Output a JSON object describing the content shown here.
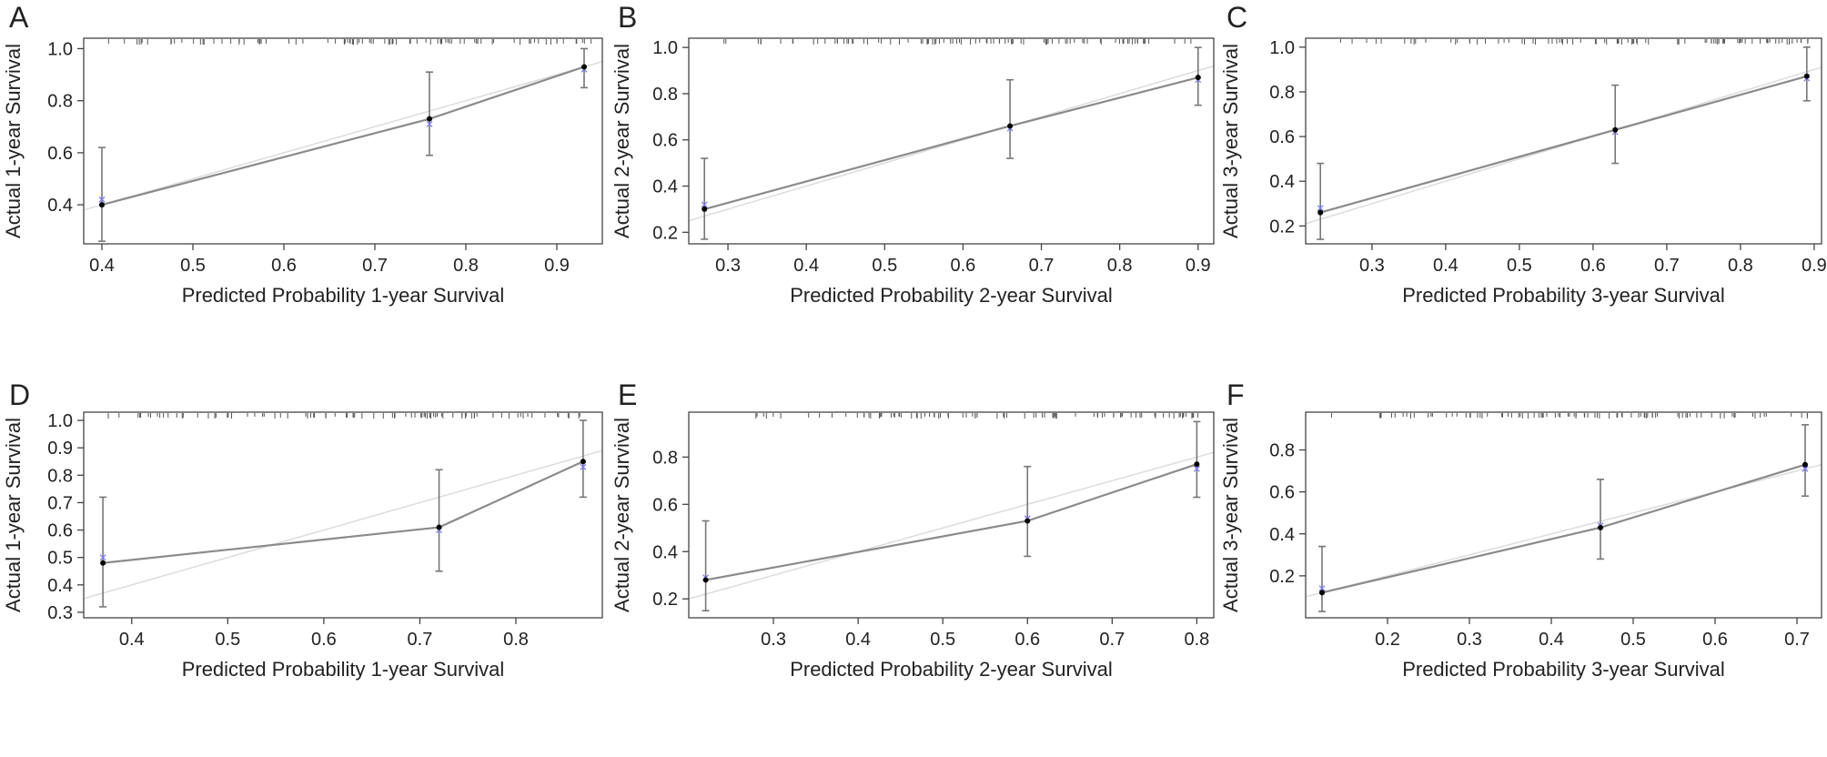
{
  "chart_data": [
    {
      "type": "line",
      "panel_label": "A",
      "xlabel": "Predicted Probability 1-year Survival",
      "ylabel": "Actual 1-year Survival",
      "xlim": [
        0.38,
        0.95
      ],
      "ylim": [
        0.25,
        1.04
      ],
      "xticks": [
        0.4,
        0.5,
        0.6,
        0.7,
        0.8,
        0.9
      ],
      "yticks": [
        0.4,
        0.6,
        0.8,
        1.0
      ],
      "points": [
        {
          "x": 0.4,
          "y": 0.4,
          "lower": 0.26,
          "upper": 0.62,
          "corrected": 0.42
        },
        {
          "x": 0.76,
          "y": 0.73,
          "lower": 0.59,
          "upper": 0.91,
          "corrected": 0.71
        },
        {
          "x": 0.93,
          "y": 0.93,
          "lower": 0.85,
          "upper": 1.0,
          "corrected": 0.92
        }
      ],
      "reference_line": true
    },
    {
      "type": "line",
      "panel_label": "B",
      "xlabel": "Predicted Probability 2-year Survival",
      "ylabel": "Actual 2-year Survival",
      "xlim": [
        0.25,
        0.92
      ],
      "ylim": [
        0.15,
        1.04
      ],
      "xticks": [
        0.3,
        0.4,
        0.5,
        0.6,
        0.7,
        0.8,
        0.9
      ],
      "yticks": [
        0.2,
        0.4,
        0.6,
        0.8,
        1.0
      ],
      "points": [
        {
          "x": 0.27,
          "y": 0.3,
          "lower": 0.17,
          "upper": 0.52,
          "corrected": 0.32
        },
        {
          "x": 0.66,
          "y": 0.66,
          "lower": 0.52,
          "upper": 0.86,
          "corrected": 0.65
        },
        {
          "x": 0.9,
          "y": 0.87,
          "lower": 0.75,
          "upper": 1.0,
          "corrected": 0.86
        }
      ],
      "reference_line": true
    },
    {
      "type": "line",
      "panel_label": "C",
      "xlabel": "Predicted Probability 3-year Survival",
      "ylabel": "Actual 3-year Survival",
      "xlim": [
        0.21,
        0.91
      ],
      "ylim": [
        0.12,
        1.04
      ],
      "xticks": [
        0.3,
        0.4,
        0.5,
        0.6,
        0.7,
        0.8,
        0.9
      ],
      "yticks": [
        0.2,
        0.4,
        0.6,
        0.8,
        1.0
      ],
      "points": [
        {
          "x": 0.23,
          "y": 0.26,
          "lower": 0.14,
          "upper": 0.48,
          "corrected": 0.28
        },
        {
          "x": 0.63,
          "y": 0.63,
          "lower": 0.48,
          "upper": 0.83,
          "corrected": 0.62
        },
        {
          "x": 0.89,
          "y": 0.87,
          "lower": 0.76,
          "upper": 1.0,
          "corrected": 0.86
        }
      ],
      "reference_line": true
    },
    {
      "type": "line",
      "panel_label": "D",
      "xlabel": "Predicted Probability 1-year Survival",
      "ylabel": "Actual 1-year Survival",
      "xlim": [
        0.35,
        0.89
      ],
      "ylim": [
        0.28,
        1.03
      ],
      "xticks": [
        0.4,
        0.5,
        0.6,
        0.7,
        0.8
      ],
      "yticks": [
        0.3,
        0.4,
        0.5,
        0.6,
        0.7,
        0.8,
        0.9,
        1.0
      ],
      "points": [
        {
          "x": 0.37,
          "y": 0.48,
          "lower": 0.32,
          "upper": 0.72,
          "corrected": 0.5
        },
        {
          "x": 0.72,
          "y": 0.61,
          "lower": 0.45,
          "upper": 0.82,
          "corrected": 0.6
        },
        {
          "x": 0.87,
          "y": 0.85,
          "lower": 0.72,
          "upper": 1.0,
          "corrected": 0.83
        }
      ],
      "reference_line": true
    },
    {
      "type": "line",
      "panel_label": "E",
      "xlabel": "Predicted Probability 2-year Survival",
      "ylabel": "Actual 2-year Survival",
      "xlim": [
        0.2,
        0.82
      ],
      "ylim": [
        0.12,
        0.99
      ],
      "xticks": [
        0.3,
        0.4,
        0.5,
        0.6,
        0.7,
        0.8
      ],
      "yticks": [
        0.2,
        0.4,
        0.6,
        0.8
      ],
      "points": [
        {
          "x": 0.22,
          "y": 0.28,
          "lower": 0.15,
          "upper": 0.53,
          "corrected": 0.29
        },
        {
          "x": 0.6,
          "y": 0.53,
          "lower": 0.38,
          "upper": 0.76,
          "corrected": 0.54
        },
        {
          "x": 0.8,
          "y": 0.77,
          "lower": 0.63,
          "upper": 0.95,
          "corrected": 0.75
        }
      ],
      "reference_line": true
    },
    {
      "type": "line",
      "panel_label": "F",
      "xlabel": "Predicted Probability 3-year Survival",
      "ylabel": "Actual 3-year Survival",
      "xlim": [
        0.1,
        0.73
      ],
      "ylim": [
        0.0,
        0.98
      ],
      "xticks": [
        0.2,
        0.3,
        0.4,
        0.5,
        0.6,
        0.7
      ],
      "yticks": [
        0.2,
        0.4,
        0.6,
        0.8
      ],
      "points": [
        {
          "x": 0.12,
          "y": 0.12,
          "lower": 0.03,
          "upper": 0.34,
          "corrected": 0.14
        },
        {
          "x": 0.46,
          "y": 0.43,
          "lower": 0.28,
          "upper": 0.66,
          "corrected": 0.44
        },
        {
          "x": 0.71,
          "y": 0.73,
          "lower": 0.58,
          "upper": 0.92,
          "corrected": 0.71
        }
      ],
      "reference_line": true
    }
  ]
}
